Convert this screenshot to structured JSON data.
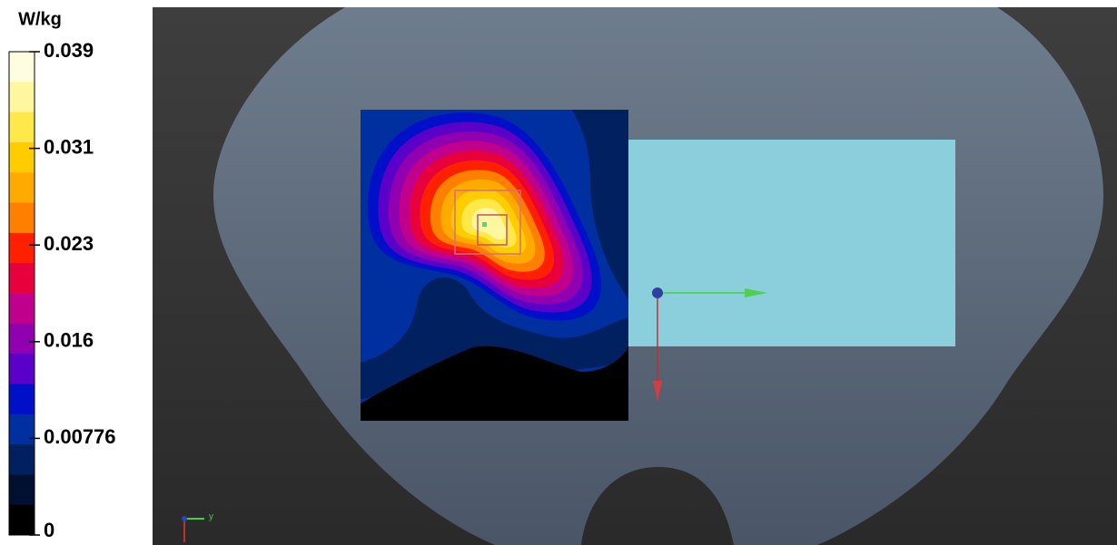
{
  "colorbar": {
    "unit": "W/kg",
    "labels": [
      "0.039",
      "0.031",
      "0.023",
      "0.016",
      "0.00776",
      "0"
    ],
    "colors": [
      "#fffde0",
      "#fff7a0",
      "#ffe84a",
      "#ffcc00",
      "#ffaa00",
      "#ff8000",
      "#ff2000",
      "#e8003c",
      "#c0008c",
      "#9000b0",
      "#5a00c8",
      "#0010c8",
      "#0030a0",
      "#002060",
      "#001030",
      "#000000"
    ]
  },
  "axes_indicator": {
    "label": "y"
  }
}
